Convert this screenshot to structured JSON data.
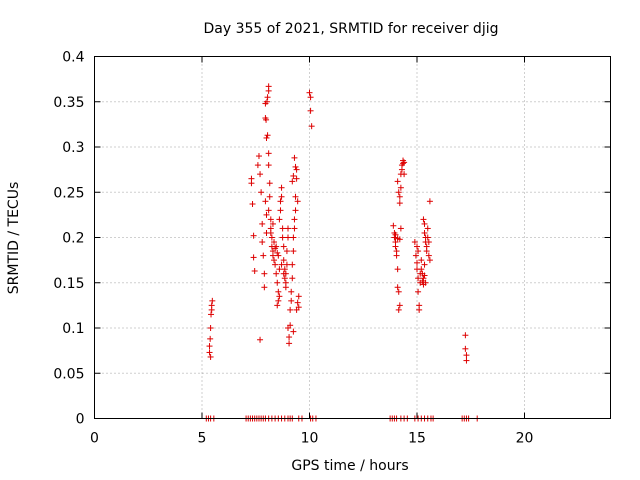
{
  "chart_data": {
    "type": "scatter",
    "title": "Day 355 of 2021, SRMTID for receiver djig",
    "xlabel": "GPS time / hours",
    "ylabel": "SRMTID / TECUs",
    "xlim": [
      0,
      24
    ],
    "ylim": [
      0,
      0.4
    ],
    "xticks": [
      0,
      5,
      10,
      15,
      20
    ],
    "yticks": [
      0,
      0.05,
      0.1,
      0.15,
      0.2,
      0.25,
      0.3,
      0.35,
      0.4
    ],
    "xtick_labels": [
      "0",
      "5",
      "10",
      "15",
      "20"
    ],
    "ytick_labels": [
      "0",
      "0.05",
      "0.1",
      "0.15",
      "0.2",
      "0.25",
      "0.3",
      "0.35",
      "0.4"
    ],
    "grid": true,
    "marker": "+",
    "color": "#dd0000",
    "series": [
      {
        "name": "SRMTID",
        "points": [
          [
            5.35,
            0.073
          ],
          [
            5.35,
            0.08
          ],
          [
            5.38,
            0.088
          ],
          [
            5.4,
            0.1
          ],
          [
            5.42,
            0.115
          ],
          [
            5.45,
            0.12
          ],
          [
            5.45,
            0.125
          ],
          [
            5.48,
            0.13
          ],
          [
            5.4,
            0.068
          ],
          [
            7.3,
            0.265
          ],
          [
            7.3,
            0.26
          ],
          [
            7.35,
            0.237
          ],
          [
            7.4,
            0.202
          ],
          [
            7.4,
            0.178
          ],
          [
            7.45,
            0.163
          ],
          [
            7.7,
            0.087
          ],
          [
            7.6,
            0.28
          ],
          [
            7.65,
            0.29
          ],
          [
            7.7,
            0.27
          ],
          [
            7.75,
            0.25
          ],
          [
            7.8,
            0.215
          ],
          [
            7.8,
            0.195
          ],
          [
            7.85,
            0.18
          ],
          [
            7.9,
            0.16
          ],
          [
            7.9,
            0.145
          ],
          [
            7.95,
            0.24
          ],
          [
            8.0,
            0.225
          ],
          [
            8.0,
            0.205
          ],
          [
            7.95,
            0.332
          ],
          [
            7.98,
            0.33
          ],
          [
            8.0,
            0.31
          ],
          [
            8.05,
            0.313
          ],
          [
            8.02,
            0.35
          ],
          [
            8.05,
            0.355
          ],
          [
            8.1,
            0.362
          ],
          [
            8.1,
            0.367
          ],
          [
            7.95,
            0.348
          ],
          [
            8.1,
            0.293
          ],
          [
            8.1,
            0.28
          ],
          [
            8.15,
            0.26
          ],
          [
            8.15,
            0.245
          ],
          [
            8.2,
            0.22
          ],
          [
            8.2,
            0.21
          ],
          [
            8.25,
            0.2
          ],
          [
            8.25,
            0.19
          ],
          [
            8.3,
            0.185
          ],
          [
            8.3,
            0.18
          ],
          [
            8.35,
            0.195
          ],
          [
            8.35,
            0.175
          ],
          [
            8.4,
            0.188
          ],
          [
            8.4,
            0.17
          ],
          [
            8.45,
            0.19
          ],
          [
            8.45,
            0.16
          ],
          [
            8.5,
            0.183
          ],
          [
            8.5,
            0.15
          ],
          [
            8.55,
            0.18
          ],
          [
            8.55,
            0.14
          ],
          [
            8.2,
            0.205
          ],
          [
            8.3,
            0.215
          ],
          [
            8.1,
            0.23
          ],
          [
            8.5,
            0.125
          ],
          [
            8.55,
            0.13
          ],
          [
            8.6,
            0.135
          ],
          [
            8.6,
            0.22
          ],
          [
            8.65,
            0.23
          ],
          [
            8.65,
            0.24
          ],
          [
            8.7,
            0.245
          ],
          [
            8.7,
            0.255
          ],
          [
            8.75,
            0.21
          ],
          [
            8.75,
            0.2
          ],
          [
            8.8,
            0.19
          ],
          [
            8.8,
            0.175
          ],
          [
            8.85,
            0.165
          ],
          [
            8.85,
            0.155
          ],
          [
            8.9,
            0.145
          ],
          [
            8.9,
            0.16
          ],
          [
            8.95,
            0.17
          ],
          [
            8.95,
            0.185
          ],
          [
            9.0,
            0.2
          ],
          [
            9.0,
            0.21
          ],
          [
            8.6,
            0.165
          ],
          [
            8.7,
            0.17
          ],
          [
            8.8,
            0.16
          ],
          [
            8.9,
            0.15
          ],
          [
            9.0,
            0.1
          ],
          [
            9.05,
            0.09
          ],
          [
            9.05,
            0.083
          ],
          [
            9.1,
            0.103
          ],
          [
            9.1,
            0.12
          ],
          [
            9.15,
            0.13
          ],
          [
            9.15,
            0.14
          ],
          [
            9.2,
            0.155
          ],
          [
            9.2,
            0.17
          ],
          [
            9.25,
            0.185
          ],
          [
            9.25,
            0.2
          ],
          [
            9.3,
            0.21
          ],
          [
            9.3,
            0.22
          ],
          [
            9.35,
            0.23
          ],
          [
            9.35,
            0.245
          ],
          [
            9.2,
            0.262
          ],
          [
            9.25,
            0.268
          ],
          [
            9.3,
            0.288
          ],
          [
            9.35,
            0.278
          ],
          [
            9.4,
            0.275
          ],
          [
            9.4,
            0.265
          ],
          [
            9.45,
            0.24
          ],
          [
            9.45,
            0.128
          ],
          [
            9.5,
            0.135
          ],
          [
            9.5,
            0.123
          ],
          [
            9.4,
            0.12
          ],
          [
            9.25,
            0.096
          ],
          [
            10.0,
            0.36
          ],
          [
            10.05,
            0.355
          ],
          [
            10.05,
            0.34
          ],
          [
            10.1,
            0.323
          ],
          [
            13.9,
            0.213
          ],
          [
            13.95,
            0.205
          ],
          [
            13.95,
            0.2
          ],
          [
            14.0,
            0.195
          ],
          [
            14.0,
            0.19
          ],
          [
            14.05,
            0.185
          ],
          [
            14.05,
            0.18
          ],
          [
            14.1,
            0.165
          ],
          [
            14.1,
            0.145
          ],
          [
            14.15,
            0.14
          ],
          [
            14.15,
            0.12
          ],
          [
            14.2,
            0.125
          ],
          [
            14.0,
            0.203
          ],
          [
            14.1,
            0.199
          ],
          [
            14.2,
            0.198
          ],
          [
            14.25,
            0.21
          ],
          [
            14.1,
            0.262
          ],
          [
            14.15,
            0.25
          ],
          [
            14.2,
            0.245
          ],
          [
            14.2,
            0.238
          ],
          [
            14.25,
            0.27
          ],
          [
            14.3,
            0.275
          ],
          [
            14.3,
            0.28
          ],
          [
            14.35,
            0.282
          ],
          [
            14.4,
            0.283
          ],
          [
            14.35,
            0.285
          ],
          [
            14.4,
            0.27
          ],
          [
            14.25,
            0.255
          ],
          [
            14.9,
            0.195
          ],
          [
            14.95,
            0.18
          ],
          [
            15.0,
            0.172
          ],
          [
            15.0,
            0.165
          ],
          [
            15.05,
            0.155
          ],
          [
            15.05,
            0.14
          ],
          [
            15.1,
            0.125
          ],
          [
            15.1,
            0.12
          ],
          [
            15.15,
            0.16
          ],
          [
            15.15,
            0.15
          ],
          [
            15.2,
            0.175
          ],
          [
            15.2,
            0.165
          ],
          [
            15.25,
            0.16
          ],
          [
            15.25,
            0.152
          ],
          [
            15.3,
            0.155
          ],
          [
            15.3,
            0.148
          ],
          [
            15.35,
            0.158
          ],
          [
            15.35,
            0.17
          ],
          [
            15.4,
            0.15
          ],
          [
            15.0,
            0.19
          ],
          [
            15.05,
            0.185
          ],
          [
            15.3,
            0.22
          ],
          [
            15.35,
            0.215
          ],
          [
            15.35,
            0.205
          ],
          [
            15.4,
            0.2
          ],
          [
            15.4,
            0.195
          ],
          [
            15.45,
            0.19
          ],
          [
            15.45,
            0.185
          ],
          [
            15.5,
            0.21
          ],
          [
            15.5,
            0.2
          ],
          [
            15.55,
            0.195
          ],
          [
            15.55,
            0.18
          ],
          [
            15.6,
            0.175
          ],
          [
            15.6,
            0.24
          ],
          [
            17.25,
            0.092
          ],
          [
            17.25,
            0.077
          ],
          [
            17.3,
            0.07
          ],
          [
            17.3,
            0.064
          ],
          [
            5.2,
            0
          ],
          [
            5.3,
            0
          ],
          [
            5.4,
            0
          ],
          [
            5.55,
            0
          ],
          [
            7.05,
            0
          ],
          [
            7.15,
            0
          ],
          [
            7.25,
            0
          ],
          [
            7.35,
            0
          ],
          [
            7.45,
            0
          ],
          [
            7.55,
            0
          ],
          [
            7.65,
            0
          ],
          [
            7.75,
            0
          ],
          [
            7.85,
            0
          ],
          [
            7.95,
            0
          ],
          [
            8.1,
            0
          ],
          [
            8.25,
            0
          ],
          [
            8.4,
            0
          ],
          [
            8.55,
            0
          ],
          [
            8.7,
            0
          ],
          [
            8.85,
            0
          ],
          [
            9.0,
            0
          ],
          [
            9.1,
            0
          ],
          [
            9.2,
            0
          ],
          [
            9.5,
            0
          ],
          [
            9.65,
            0
          ],
          [
            10.05,
            0
          ],
          [
            10.15,
            0
          ],
          [
            10.3,
            0
          ],
          [
            13.75,
            0
          ],
          [
            13.85,
            0
          ],
          [
            13.95,
            0
          ],
          [
            14.05,
            0
          ],
          [
            14.25,
            0
          ],
          [
            14.4,
            0
          ],
          [
            14.55,
            0
          ],
          [
            14.9,
            0
          ],
          [
            15.05,
            0
          ],
          [
            15.2,
            0
          ],
          [
            15.35,
            0
          ],
          [
            15.5,
            0
          ],
          [
            15.65,
            0
          ],
          [
            15.75,
            0
          ],
          [
            17.1,
            0
          ],
          [
            17.2,
            0
          ],
          [
            17.3,
            0
          ],
          [
            17.4,
            0
          ],
          [
            17.8,
            0
          ]
        ]
      }
    ]
  }
}
